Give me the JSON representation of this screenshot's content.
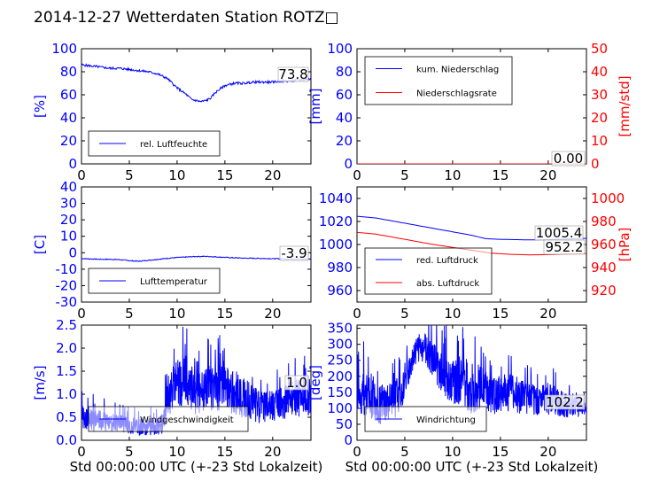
{
  "title": "2014-12-27 Wetterdaten Station ROTZ□",
  "colors": {
    "primary": "#0000ff",
    "secondary": "#ff0000",
    "axis": "#000000"
  },
  "chart_data": [
    {
      "id": "humidity",
      "type": "line",
      "xlim": [
        0,
        24
      ],
      "xticks": [
        0,
        5,
        10,
        15,
        20
      ],
      "ylim": [
        0,
        100
      ],
      "yticks": [
        0,
        20,
        40,
        60,
        80,
        100
      ],
      "ylabel": "[%]",
      "xlabel": "",
      "legend": [
        "rel. Luftfeuchte"
      ],
      "legend_position": "lower-left",
      "annotation": "73.8",
      "series": [
        {
          "name": "rel. Luftfeuchte",
          "color": "#0000ff",
          "x": [
            0,
            1,
            2,
            3,
            4,
            5,
            6,
            7,
            8,
            9,
            10,
            11,
            11.5,
            12,
            12.5,
            13,
            13.5,
            14,
            15,
            16,
            17,
            18,
            19,
            20,
            21,
            22,
            23,
            24
          ],
          "y": [
            86,
            85,
            84,
            83,
            83,
            82,
            81,
            80,
            78,
            74,
            66,
            60,
            56,
            55,
            54,
            55,
            57,
            62,
            68,
            70,
            70,
            71,
            71,
            71,
            72,
            72,
            73,
            73.8
          ]
        }
      ]
    },
    {
      "id": "precipitation",
      "type": "line",
      "xlim": [
        0,
        24
      ],
      "xticks": [
        0,
        5,
        10,
        15,
        20
      ],
      "ylim": [
        0,
        100
      ],
      "yticks": [
        0,
        20,
        40,
        60,
        80,
        100
      ],
      "ylabel": "[mm]",
      "y2lim": [
        0,
        50
      ],
      "y2ticks": [
        0,
        10,
        20,
        30,
        40,
        50
      ],
      "y2label": "[mm/std]",
      "xlabel": "",
      "legend": [
        "kum. Niederschlag",
        "Niederschlagsrate"
      ],
      "legend_position": "upper-left",
      "annotation": "0.00",
      "series": [
        {
          "name": "kum. Niederschlag",
          "axis": "left",
          "color": "#0000ff",
          "x": [
            0,
            24
          ],
          "y": [
            0,
            0
          ]
        },
        {
          "name": "Niederschlagsrate",
          "axis": "right",
          "color": "#ff0000",
          "x": [
            0,
            24
          ],
          "y": [
            0,
            0
          ]
        }
      ]
    },
    {
      "id": "temperature",
      "type": "line",
      "xlim": [
        0,
        24
      ],
      "xticks": [
        0,
        5,
        10,
        15,
        20
      ],
      "ylim": [
        -30,
        40
      ],
      "yticks": [
        -30,
        -20,
        -10,
        0,
        10,
        20,
        30,
        40
      ],
      "ylabel": "[C]",
      "xlabel": "",
      "legend": [
        "Lufttemperatur"
      ],
      "legend_position": "lower-left",
      "annotation": "-3.9",
      "series": [
        {
          "name": "Lufttemperatur",
          "color": "#0000ff",
          "x": [
            0,
            1,
            2,
            3,
            4,
            5,
            6,
            7,
            8,
            9,
            10,
            11,
            12,
            13,
            14,
            15,
            16,
            17,
            18,
            19,
            20,
            21,
            22,
            23,
            24
          ],
          "y": [
            -3.5,
            -3.8,
            -4,
            -4,
            -4.2,
            -4.8,
            -5.2,
            -4.6,
            -4,
            -3.4,
            -2.9,
            -2.6,
            -2.3,
            -2.2,
            -2.5,
            -2.8,
            -3.1,
            -3.3,
            -3.4,
            -3.5,
            -3.6,
            -3.7,
            -3.8,
            -3.9,
            -3.9
          ]
        }
      ]
    },
    {
      "id": "pressure",
      "type": "line",
      "xlim": [
        0,
        24
      ],
      "xticks": [
        0,
        5,
        10,
        15,
        20
      ],
      "ylim": [
        950,
        1050
      ],
      "yticks": [
        960,
        980,
        1000,
        1020,
        1040
      ],
      "ylabel": "",
      "y2lim": [
        910,
        1010
      ],
      "y2ticks": [
        920,
        940,
        960,
        980,
        1000
      ],
      "y2label": "[hPa]",
      "xlabel": "",
      "legend": [
        "red. Luftdruck",
        "abs. Luftdruck"
      ],
      "legend_position": "lower-left",
      "annotations": [
        "1005.4",
        "952.2"
      ],
      "series": [
        {
          "name": "red. Luftdruck",
          "axis": "left",
          "color": "#0000ff",
          "x": [
            0,
            2,
            4,
            6,
            8,
            10,
            12,
            13.5,
            15,
            18,
            20,
            22,
            24
          ],
          "y": [
            1024.5,
            1023,
            1020,
            1017,
            1014,
            1011,
            1008,
            1005,
            1004.5,
            1004,
            1004.2,
            1004.8,
            1005.4
          ]
        },
        {
          "name": "abs. Luftdruck",
          "axis": "right",
          "color": "#ff0000",
          "x": [
            0,
            2,
            4,
            6,
            8,
            10,
            12,
            14,
            16,
            18,
            20,
            22,
            24
          ],
          "y": [
            970.5,
            969,
            966,
            963,
            960,
            957.5,
            955,
            952.5,
            951.5,
            951,
            951.2,
            951.8,
            952.2
          ]
        }
      ]
    },
    {
      "id": "windspeed",
      "type": "line",
      "xlim": [
        0,
        24
      ],
      "xticks": [
        0,
        5,
        10,
        15,
        20
      ],
      "ylim": [
        0,
        2.5
      ],
      "yticks": [
        0.0,
        0.5,
        1.0,
        1.5,
        2.0,
        2.5
      ],
      "ylabel": "[m/s]",
      "xlabel": "Std 00:00:00 UTC (+-23 Std Lokalzeit)",
      "legend": [
        "Windgeschwindigkeit"
      ],
      "legend_position": "lower-left",
      "annotation": "1.0",
      "series": [
        {
          "name": "Windgeschwindigkeit",
          "color": "#0000ff",
          "noisy": true,
          "x": [
            0,
            1,
            2,
            3,
            4,
            5,
            6,
            7,
            8,
            8.5,
            9,
            10,
            11,
            12,
            13,
            14,
            15,
            16,
            17,
            18,
            19,
            20,
            21,
            22,
            23,
            24
          ],
          "y": [
            0.5,
            0.45,
            0.4,
            0.4,
            0.35,
            0.35,
            0.3,
            0.3,
            0.3,
            0.45,
            0.95,
            1.25,
            1.3,
            1.05,
            1.15,
            1.1,
            1.2,
            1.05,
            0.9,
            0.8,
            0.7,
            0.75,
            0.8,
            0.9,
            0.95,
            1.0
          ],
          "amplitude": [
            0.25,
            0.25,
            0.25,
            0.2,
            0.2,
            0.2,
            0.2,
            0.2,
            0.2,
            0.3,
            0.45,
            0.5,
            0.55,
            0.5,
            0.5,
            0.5,
            0.55,
            0.5,
            0.45,
            0.4,
            0.35,
            0.35,
            0.35,
            0.4,
            0.45,
            0.45
          ]
        }
      ]
    },
    {
      "id": "winddirection",
      "type": "line",
      "xlim": [
        0,
        24
      ],
      "xticks": [
        0,
        5,
        10,
        15,
        20
      ],
      "ylim": [
        0,
        360
      ],
      "yticks": [
        0,
        50,
        100,
        150,
        200,
        250,
        300,
        350
      ],
      "ylabel": "[deg]",
      "xlabel": "Std 00:00:00 UTC (+-23 Std Lokalzeit)",
      "legend": [
        "Windrichtung"
      ],
      "legend_position": "lower-left",
      "annotation": "102.2",
      "series": [
        {
          "name": "Windrichtung",
          "color": "#0000ff",
          "noisy": true,
          "x": [
            0,
            1,
            2,
            3,
            4,
            5,
            5.5,
            6,
            7,
            8,
            9,
            10,
            11,
            12,
            13,
            14,
            15,
            16,
            17,
            18,
            19,
            20,
            21,
            22,
            23,
            24
          ],
          "y": [
            150,
            150,
            120,
            110,
            130,
            170,
            230,
            280,
            290,
            250,
            210,
            180,
            190,
            160,
            170,
            130,
            150,
            150,
            140,
            130,
            120,
            130,
            120,
            110,
            110,
            102.2
          ],
          "amplitude": [
            70,
            80,
            70,
            60,
            60,
            50,
            50,
            45,
            50,
            60,
            70,
            70,
            80,
            80,
            70,
            60,
            60,
            60,
            60,
            50,
            50,
            50,
            45,
            40,
            40,
            30
          ]
        }
      ]
    }
  ]
}
